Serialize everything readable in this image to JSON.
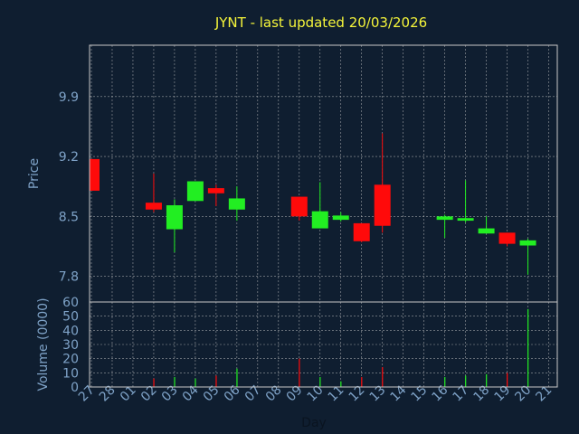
{
  "title": "JYNT - last updated 20/03/2026",
  "colors": {
    "background": "#0f1e30",
    "up": "#22ee22",
    "down": "#ff0a0a",
    "text": "#7fa3c8",
    "title": "#f5f53a"
  },
  "chart_data": [
    {
      "type": "candlestick",
      "ylabel": "Price",
      "ylim": [
        7.5,
        10.5
      ],
      "yticks": [
        "9.9",
        "9.2",
        "8.5",
        "7.8"
      ],
      "ytick_values": [
        9.9,
        9.2,
        8.5,
        7.8
      ],
      "grid": true,
      "x": [
        "27",
        "28",
        "01",
        "02",
        "03",
        "04",
        "05",
        "06",
        "07",
        "08",
        "09",
        "10",
        "11",
        "12",
        "13",
        "14",
        "15",
        "16",
        "17",
        "18",
        "19",
        "20",
        "21"
      ],
      "candles": [
        {
          "day": "27",
          "open": 9.17,
          "close": 8.8,
          "high": 9.17,
          "low": 8.8
        },
        {
          "day": "02",
          "open": 8.66,
          "close": 8.58,
          "high": 9.0,
          "low": 8.55
        },
        {
          "day": "03",
          "open": 8.35,
          "close": 8.63,
          "high": 8.7,
          "low": 8.08
        },
        {
          "day": "04",
          "open": 8.68,
          "close": 8.91,
          "high": 8.91,
          "low": 8.68
        },
        {
          "day": "05",
          "open": 8.83,
          "close": 8.77,
          "high": 8.87,
          "low": 8.62
        },
        {
          "day": "06",
          "open": 8.58,
          "close": 8.71,
          "high": 8.85,
          "low": 8.45
        },
        {
          "day": "09",
          "open": 8.73,
          "close": 8.5,
          "high": 8.73,
          "low": 8.45
        },
        {
          "day": "10",
          "open": 8.36,
          "close": 8.56,
          "high": 8.9,
          "low": 8.36
        },
        {
          "day": "11",
          "open": 8.46,
          "close": 8.51,
          "high": 8.55,
          "low": 8.44
        },
        {
          "day": "12",
          "open": 8.42,
          "close": 8.21,
          "high": 8.42,
          "low": 8.2
        },
        {
          "day": "13",
          "open": 8.87,
          "close": 8.39,
          "high": 9.47,
          "low": 8.31
        },
        {
          "day": "16",
          "open": 8.46,
          "close": 8.5,
          "high": 8.52,
          "low": 8.25
        },
        {
          "day": "17",
          "open": 8.45,
          "close": 8.48,
          "high": 8.92,
          "low": 8.43
        },
        {
          "day": "18",
          "open": 8.3,
          "close": 8.36,
          "high": 8.5,
          "low": 8.3
        },
        {
          "day": "19",
          "open": 8.31,
          "close": 8.18,
          "high": 8.31,
          "low": 8.15
        },
        {
          "day": "20",
          "open": 8.16,
          "close": 8.22,
          "high": 8.24,
          "low": 7.82
        }
      ]
    },
    {
      "type": "bar",
      "ylabel": "Volume (0000)",
      "xlabel": "Day",
      "ylim": [
        0,
        60
      ],
      "yticks": [
        "60",
        "50",
        "40",
        "30",
        "20",
        "10",
        "0"
      ],
      "ytick_values": [
        60,
        50,
        40,
        30,
        20,
        10,
        0
      ],
      "grid": true,
      "bars": [
        {
          "day": "02",
          "value": 6,
          "color": "down"
        },
        {
          "day": "03",
          "value": 7,
          "color": "up"
        },
        {
          "day": "04",
          "value": 6,
          "color": "up"
        },
        {
          "day": "05",
          "value": 8,
          "color": "down"
        },
        {
          "day": "06",
          "value": 13,
          "color": "up"
        },
        {
          "day": "09",
          "value": 20,
          "color": "down"
        },
        {
          "day": "10",
          "value": 7,
          "color": "up"
        },
        {
          "day": "11",
          "value": 4,
          "color": "up"
        },
        {
          "day": "12",
          "value": 7,
          "color": "down"
        },
        {
          "day": "13",
          "value": 14,
          "color": "down"
        },
        {
          "day": "16",
          "value": 7,
          "color": "up"
        },
        {
          "day": "17",
          "value": 8,
          "color": "up"
        },
        {
          "day": "18",
          "value": 9,
          "color": "up"
        },
        {
          "day": "19",
          "value": 10,
          "color": "down"
        },
        {
          "day": "20",
          "value": 55,
          "color": "up"
        }
      ]
    }
  ]
}
